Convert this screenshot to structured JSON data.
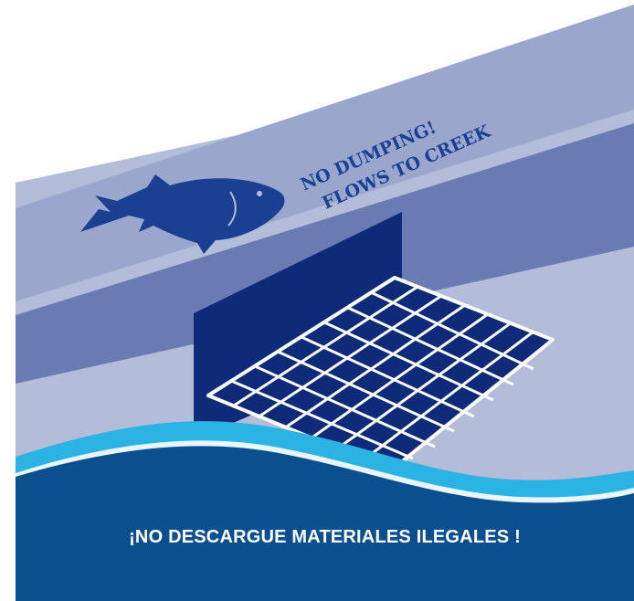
{
  "curb_stencil": {
    "line1": "NO DUMPING!",
    "line2": "FLOWS TO CREEK",
    "icon": "fish-icon"
  },
  "banner": {
    "text": "¡NO DESCARGUE MATERIALES ILEGALES !"
  },
  "colors": {
    "curb_top": "#9aa6cc",
    "curb_face": "#6a7bb3",
    "street": "#b3bdd9",
    "drain": "#0f2a78",
    "stencil": "#1a3f93",
    "wave_light": "#2bb3e3",
    "banner": "#0b4f8f"
  }
}
